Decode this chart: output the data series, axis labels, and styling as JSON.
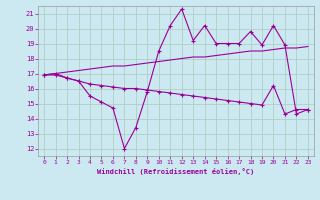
{
  "xlabel": "Windchill (Refroidissement éolien,°C)",
  "background_color": "#cce8f0",
  "grid_color": "#aaccbb",
  "line_color": "#990099",
  "xlim": [
    -0.5,
    23.5
  ],
  "ylim": [
    11.5,
    21.5
  ],
  "yticks": [
    12,
    13,
    14,
    15,
    16,
    17,
    18,
    19,
    20,
    21
  ],
  "xticks": [
    0,
    1,
    2,
    3,
    4,
    5,
    6,
    7,
    8,
    9,
    10,
    11,
    12,
    13,
    14,
    15,
    16,
    17,
    18,
    19,
    20,
    21,
    22,
    23
  ],
  "line1_x": [
    0,
    1,
    2,
    3,
    4,
    5,
    6,
    7,
    8,
    9,
    10,
    11,
    12,
    13,
    14,
    15,
    16,
    17,
    18,
    19,
    20,
    21,
    22,
    23
  ],
  "line1_y": [
    16.9,
    16.9,
    16.7,
    16.5,
    15.5,
    15.1,
    14.7,
    12.0,
    13.4,
    15.8,
    18.5,
    20.2,
    21.3,
    19.2,
    20.2,
    19.0,
    19.0,
    19.0,
    19.8,
    18.9,
    20.2,
    18.9,
    14.3,
    14.6
  ],
  "line2_x": [
    0,
    1,
    2,
    3,
    4,
    5,
    6,
    7,
    8,
    9,
    10,
    11,
    12,
    13,
    14,
    15,
    16,
    17,
    18,
    19,
    20,
    21,
    22,
    23
  ],
  "line2_y": [
    16.9,
    17.0,
    17.1,
    17.2,
    17.3,
    17.4,
    17.5,
    17.5,
    17.6,
    17.7,
    17.8,
    17.9,
    18.0,
    18.1,
    18.1,
    18.2,
    18.3,
    18.4,
    18.5,
    18.5,
    18.6,
    18.7,
    18.7,
    18.8
  ],
  "line3_x": [
    0,
    1,
    2,
    3,
    4,
    5,
    6,
    7,
    8,
    9,
    10,
    11,
    12,
    13,
    14,
    15,
    16,
    17,
    18,
    19,
    20,
    21,
    22,
    23
  ],
  "line3_y": [
    16.9,
    17.0,
    16.7,
    16.5,
    16.3,
    16.2,
    16.1,
    16.0,
    16.0,
    15.9,
    15.8,
    15.7,
    15.6,
    15.5,
    15.4,
    15.3,
    15.2,
    15.1,
    15.0,
    14.9,
    16.2,
    14.3,
    14.6,
    14.6
  ]
}
